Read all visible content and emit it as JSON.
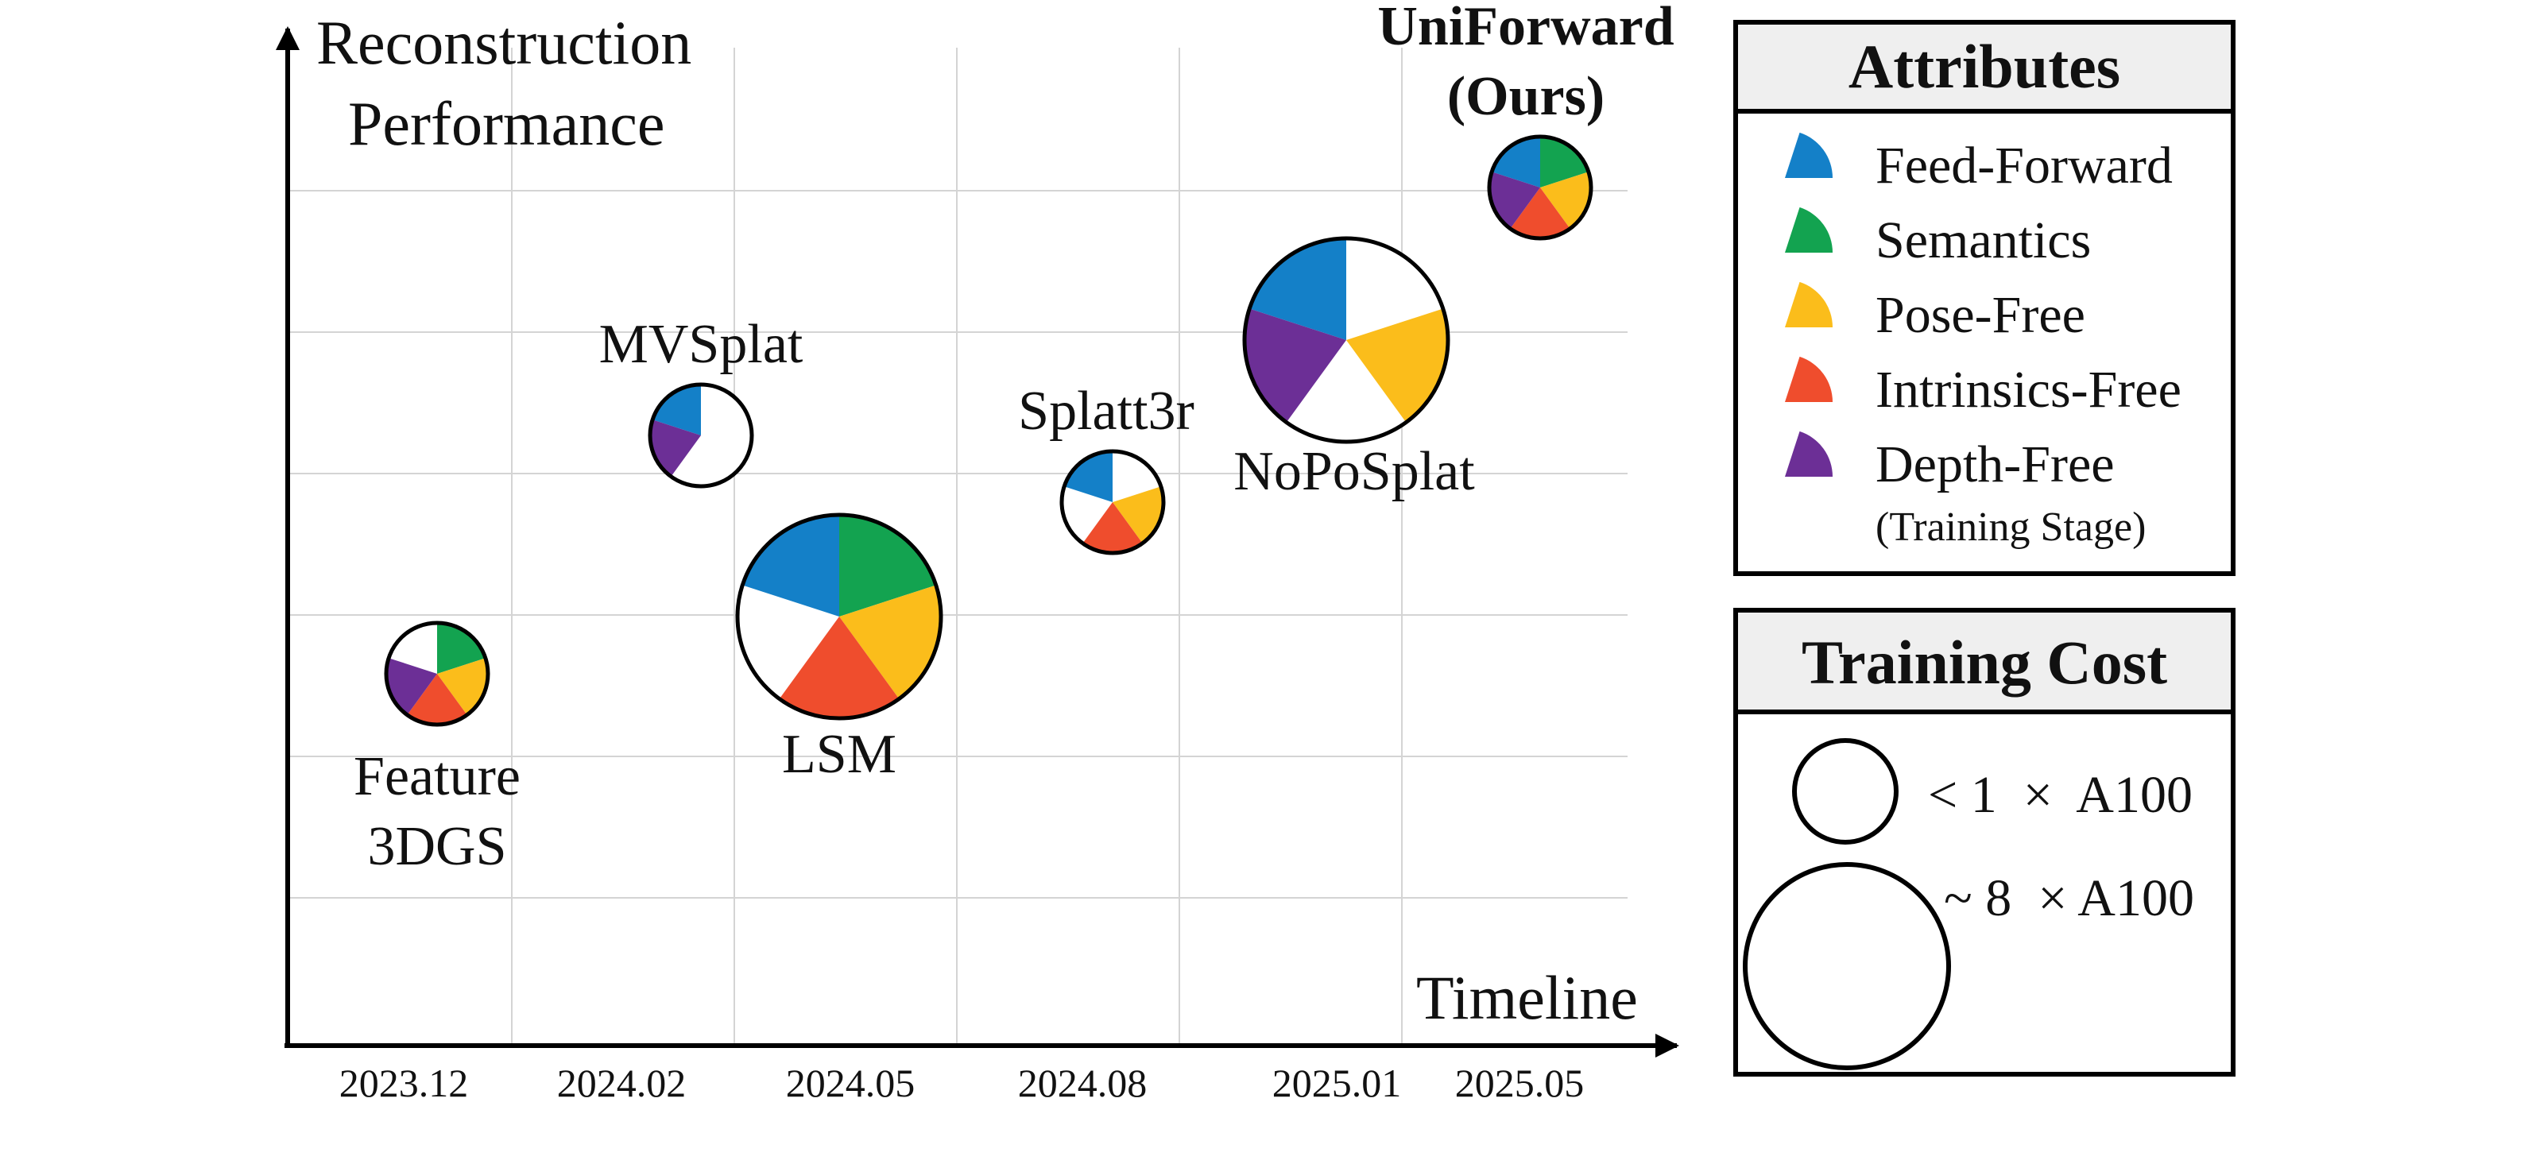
{
  "chart_data": {
    "type": "scatter",
    "ylabel": [
      "Reconstruction",
      "Performance"
    ],
    "xlabel": "Timeline",
    "x_ticks": [
      "2023.12",
      "2024.02",
      "2024.05",
      "2024.08",
      "2025.01",
      "2025.05"
    ],
    "grid": true,
    "attributes_legend": {
      "title": "Attributes",
      "items": [
        {
          "name": "Feed-Forward",
          "color": "#1480c8"
        },
        {
          "name": "Semantics",
          "color": "#13a350"
        },
        {
          "name": "Pose-Free",
          "color": "#fbbd1b"
        },
        {
          "name": "Intrinsics-Free",
          "color": "#ef4d2d"
        },
        {
          "name": "Depth-Free",
          "color": "#6c2f96"
        }
      ],
      "note": "(Training Stage)"
    },
    "cost_legend": {
      "title": "Training Cost",
      "items": [
        {
          "label": "< 1  ×  A100",
          "size": "small"
        },
        {
          "label": "~ 8  × A100",
          "size": "large"
        }
      ]
    },
    "points": [
      {
        "name": "Feature 3DGS",
        "label_lines": [
          "Feature",
          "3DGS"
        ],
        "x": "2023.12",
        "y": 1.95,
        "cost": "small",
        "attributes": {
          "Feed-Forward": false,
          "Semantics": true,
          "Pose-Free": true,
          "Intrinsics-Free": true,
          "Depth-Free": true
        }
      },
      {
        "name": "MVSplat",
        "label_lines": [
          "MVSplat"
        ],
        "x": "2024.02",
        "y": 3.2,
        "cost": "small",
        "attributes": {
          "Feed-Forward": true,
          "Semantics": false,
          "Pose-Free": false,
          "Intrinsics-Free": false,
          "Depth-Free": true
        }
      },
      {
        "name": "LSM",
        "label_lines": [
          "LSM"
        ],
        "x": "2024.05",
        "y": 2.25,
        "cost": "large",
        "attributes": {
          "Feed-Forward": true,
          "Semantics": true,
          "Pose-Free": true,
          "Intrinsics-Free": true,
          "Depth-Free": false
        }
      },
      {
        "name": "Splatt3r",
        "label_lines": [
          "Splatt3r"
        ],
        "x": "2024.08",
        "y": 2.85,
        "cost": "small",
        "attributes": {
          "Feed-Forward": true,
          "Semantics": false,
          "Pose-Free": true,
          "Intrinsics-Free": true,
          "Depth-Free": false
        }
      },
      {
        "name": "NoPoSplat",
        "label_lines": [
          "NoPoSplat"
        ],
        "x": "2025.01",
        "y": 3.7,
        "cost": "large",
        "attributes": {
          "Feed-Forward": true,
          "Semantics": false,
          "Pose-Free": true,
          "Intrinsics-Free": false,
          "Depth-Free": true
        }
      },
      {
        "name": "UniForward (Ours)",
        "label_lines": [
          "UniForward",
          "(Ours)"
        ],
        "bold": true,
        "x": "2025.05",
        "y": 4.5,
        "cost": "small",
        "attributes": {
          "Feed-Forward": true,
          "Semantics": true,
          "Pose-Free": true,
          "Intrinsics-Free": true,
          "Depth-Free": true
        }
      }
    ]
  }
}
